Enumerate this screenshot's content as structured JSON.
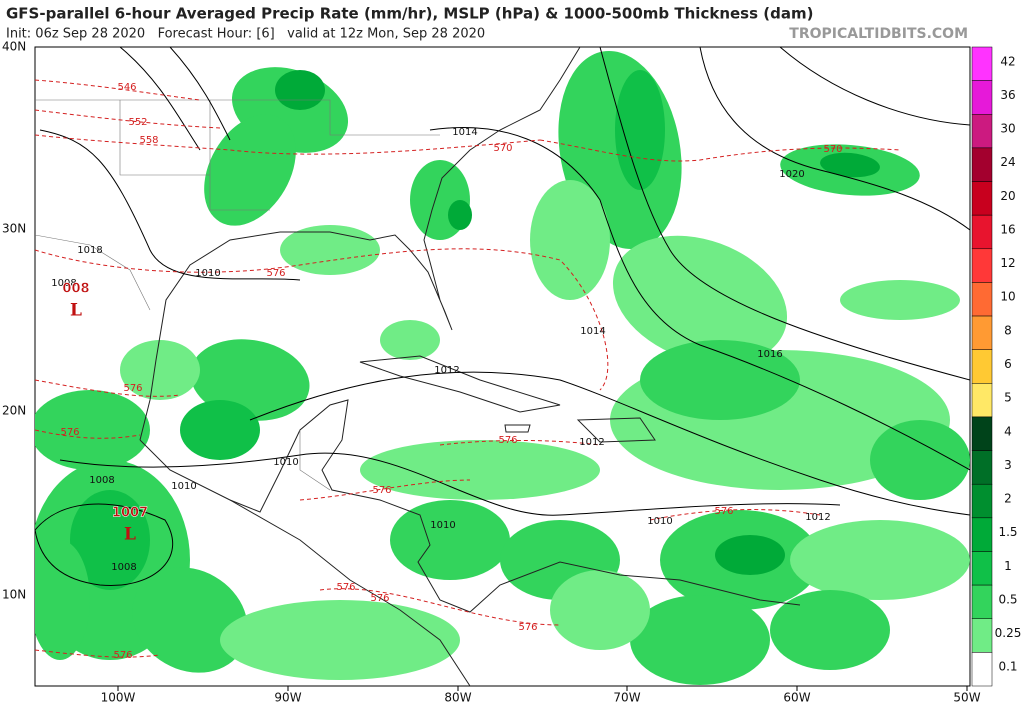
{
  "header": {
    "title": "GFS-parallel 6-hour Averaged Precip Rate (mm/hr), MSLP (hPa) & 1000-500mb Thickness (dam)",
    "subtitle": "Init: 06z Sep 28 2020   Forecast Hour: [6]   valid at 12z Mon, Sep 28 2020",
    "brand": "TROPICALTIDBITS.COM"
  },
  "map": {
    "lat_labels": [
      "40N",
      "30N",
      "20N",
      "10N"
    ],
    "lon_labels": [
      "100W",
      "90W",
      "80W",
      "70W",
      "60W",
      "50W"
    ],
    "isobar_labels": [
      "1014",
      "1020",
      "1018",
      "1010",
      "1008",
      "1014",
      "1016",
      "1012",
      "1012",
      "1010",
      "1008",
      "1010",
      "1010",
      "1010",
      "1012",
      "1008"
    ],
    "thickness_labels": [
      "546",
      "552",
      "558",
      "570",
      "570",
      "576",
      "576",
      "576",
      "576",
      "576",
      "576",
      "576",
      "576",
      "576",
      "576"
    ],
    "pressure_centers": [
      {
        "value": "008",
        "symbol": "L"
      },
      {
        "value": "1007",
        "symbol": "L"
      }
    ]
  },
  "colorbar": {
    "labels": [
      "42",
      "36",
      "30",
      "24",
      "20",
      "16",
      "12",
      "10",
      "8",
      "6",
      "5",
      "4",
      "3",
      "2",
      "1.5",
      "1",
      "0.5",
      "0.25",
      "0.1"
    ],
    "colors": [
      "#ff33ff",
      "#e619d9",
      "#cc1a80",
      "#a3002e",
      "#c8001e",
      "#e8142e",
      "#ff3838",
      "#ff6a33",
      "#ff9a33",
      "#ffc933",
      "#ffe866",
      "#00431a",
      "#006f27",
      "#008f2f",
      "#00aa38",
      "#10c048",
      "#33d45c",
      "#70ec86",
      "#ffffff"
    ]
  }
}
